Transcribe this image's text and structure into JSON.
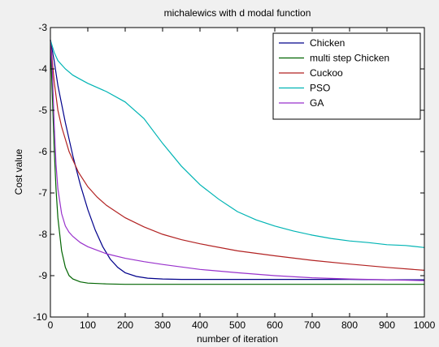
{
  "chart_data": {
    "type": "line",
    "title": "michalewics with d modal function",
    "xlabel": "number of iteration",
    "ylabel": "Cost value",
    "xlim": [
      0,
      1000
    ],
    "ylim": [
      -10,
      -3
    ],
    "xticks": [
      0,
      100,
      200,
      300,
      400,
      500,
      600,
      700,
      800,
      900,
      1000
    ],
    "yticks": [
      -3,
      -4,
      -5,
      -6,
      -7,
      -8,
      -9,
      -10
    ],
    "grid": false,
    "legend_position": "top-right",
    "series": [
      {
        "name": "Chicken",
        "color": "#00008b",
        "x": [
          0,
          10,
          20,
          40,
          60,
          80,
          100,
          120,
          140,
          160,
          180,
          200,
          230,
          260,
          300,
          350,
          400,
          500,
          600,
          700,
          800,
          900,
          1000
        ],
        "y": [
          -3.3,
          -3.8,
          -4.4,
          -5.3,
          -6.1,
          -6.8,
          -7.4,
          -7.9,
          -8.3,
          -8.6,
          -8.8,
          -8.93,
          -9.02,
          -9.06,
          -9.08,
          -9.09,
          -9.09,
          -9.09,
          -9.09,
          -9.09,
          -9.09,
          -9.1,
          -9.1
        ]
      },
      {
        "name": " multi step Chicken",
        "color": "#006400",
        "x": [
          0,
          5,
          10,
          15,
          20,
          30,
          40,
          50,
          60,
          80,
          100,
          150,
          200,
          300,
          500,
          700,
          1000
        ],
        "y": [
          -3.3,
          -4.6,
          -5.9,
          -6.9,
          -7.6,
          -8.4,
          -8.8,
          -9.0,
          -9.08,
          -9.15,
          -9.18,
          -9.2,
          -9.21,
          -9.21,
          -9.21,
          -9.21,
          -9.21
        ]
      },
      {
        "name": "Cuckoo",
        "color": "#b22222",
        "x": [
          0,
          10,
          20,
          30,
          50,
          75,
          100,
          125,
          150,
          200,
          250,
          300,
          350,
          400,
          500,
          600,
          700,
          800,
          900,
          1000
        ],
        "y": [
          -3.3,
          -4.3,
          -5.0,
          -5.4,
          -6.0,
          -6.5,
          -6.85,
          -7.1,
          -7.3,
          -7.6,
          -7.82,
          -8.0,
          -8.13,
          -8.23,
          -8.4,
          -8.52,
          -8.63,
          -8.72,
          -8.8,
          -8.87
        ]
      },
      {
        "name": "PSO",
        "color": "#00b4b4",
        "x": [
          0,
          10,
          20,
          40,
          60,
          80,
          100,
          150,
          200,
          250,
          300,
          350,
          400,
          450,
          500,
          550,
          600,
          650,
          700,
          750,
          800,
          850,
          900,
          950,
          1000
        ],
        "y": [
          -3.3,
          -3.6,
          -3.8,
          -4.0,
          -4.15,
          -4.25,
          -4.35,
          -4.55,
          -4.8,
          -5.2,
          -5.8,
          -6.35,
          -6.8,
          -7.15,
          -7.45,
          -7.65,
          -7.8,
          -7.92,
          -8.02,
          -8.1,
          -8.16,
          -8.2,
          -8.25,
          -8.27,
          -8.32
        ]
      },
      {
        "name": "GA",
        "color": "#9932cc",
        "x": [
          0,
          5,
          10,
          15,
          20,
          30,
          40,
          50,
          60,
          80,
          100,
          150,
          200,
          250,
          300,
          400,
          500,
          600,
          700,
          800,
          900,
          1000
        ],
        "y": [
          -3.3,
          -4.0,
          -5.3,
          -6.3,
          -6.9,
          -7.5,
          -7.8,
          -7.95,
          -8.05,
          -8.2,
          -8.3,
          -8.47,
          -8.58,
          -8.66,
          -8.73,
          -8.85,
          -8.93,
          -9.0,
          -9.05,
          -9.08,
          -9.1,
          -9.12
        ]
      }
    ]
  }
}
